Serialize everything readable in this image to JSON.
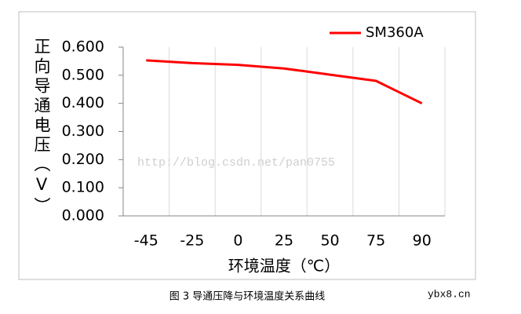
{
  "chart_data": {
    "type": "line",
    "y_label": "正向导通电压（V）",
    "x_label": "环境温度（℃）",
    "caption": "图 3 导通压降与环境温度关系曲线",
    "watermarks": [
      "http://blog.csdn.net/pan0755",
      "ybx8.cn"
    ],
    "categories": [
      "-45",
      "-25",
      "0",
      "25",
      "50",
      "75",
      "90"
    ],
    "series": [
      {
        "name": "SM360A",
        "color": "#ff0000",
        "values": [
          0.553,
          0.543,
          0.537,
          0.524,
          0.502,
          0.48,
          0.4
        ]
      }
    ],
    "ylim": [
      0,
      0.6
    ],
    "yticks": [
      {
        "value": 0,
        "label": "0.000"
      },
      {
        "value": 0.1,
        "label": "0.100"
      },
      {
        "value": 0.2,
        "label": "0.200"
      },
      {
        "value": 0.3,
        "label": "0.300"
      },
      {
        "value": 0.4,
        "label": "0.400"
      },
      {
        "value": 0.5,
        "label": "0.500"
      },
      {
        "value": 0.6,
        "label": "0.600"
      }
    ],
    "grid": true,
    "legend": "top-right"
  }
}
